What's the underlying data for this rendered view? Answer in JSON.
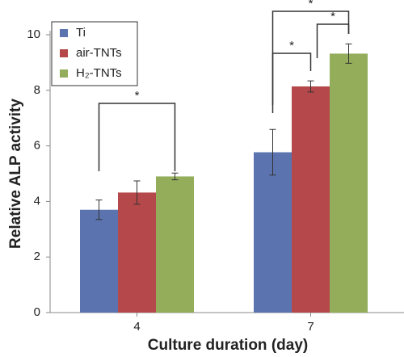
{
  "chart_data": {
    "type": "bar",
    "x_label": "Culture duration (day)",
    "y_label": "Relative ALP activity",
    "categories": [
      "4",
      "7"
    ],
    "series": [
      {
        "name": "Ti",
        "color": "#5b73ae",
        "values": [
          3.7,
          5.77
        ],
        "errors": [
          0.35,
          0.82
        ]
      },
      {
        "name": "air-TNTs",
        "color": "#b5484a",
        "values": [
          4.32,
          8.14
        ],
        "errors": [
          0.42,
          0.2
        ]
      },
      {
        "name": "H₂-TNTs",
        "color": "#93ad5a",
        "values": [
          4.9,
          9.32
        ],
        "errors": [
          0.12,
          0.35
        ]
      }
    ],
    "annotations": [
      "*",
      "*",
      "*",
      "*"
    ],
    "ylim": [
      0,
      10
    ],
    "yticks": [
      0,
      2,
      4,
      6,
      8,
      10
    ],
    "legend": "upper left",
    "grid": false
  }
}
